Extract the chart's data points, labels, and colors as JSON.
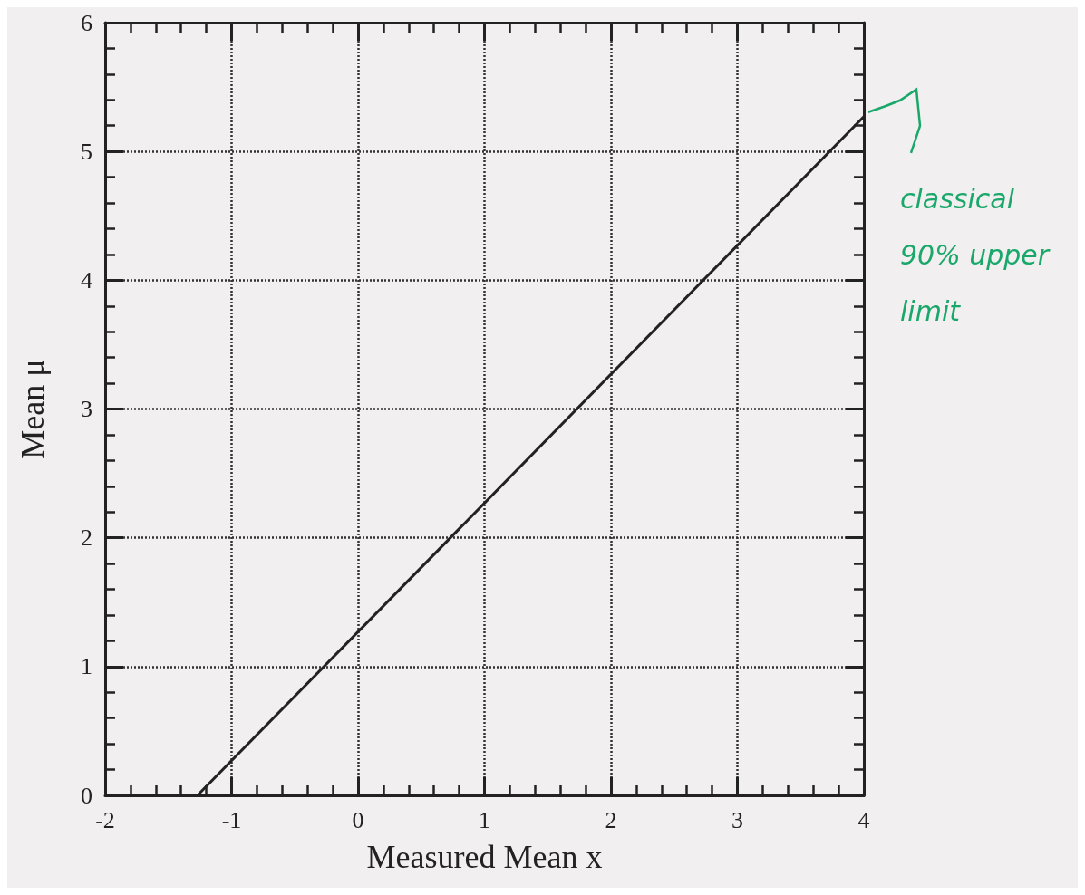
{
  "chart_data": {
    "type": "line",
    "xlabel": "Measured Mean x",
    "ylabel": "Mean μ",
    "x": [
      -1.27,
      4
    ],
    "series": [
      {
        "color": "#222222",
        "values": [
          0,
          5.27
        ]
      }
    ],
    "xlim": [
      -2,
      4
    ],
    "ylim": [
      0,
      6
    ],
    "xticks": [
      -2,
      -1,
      0,
      1,
      2,
      3,
      4
    ],
    "yticks": [
      0,
      1,
      2,
      3,
      4,
      5,
      6
    ],
    "grid": true,
    "marker": "none",
    "line_style": "solid",
    "annotations": [
      {
        "text": "classical 90% upper limit",
        "x": 4,
        "y": 5.27
      }
    ]
  }
}
